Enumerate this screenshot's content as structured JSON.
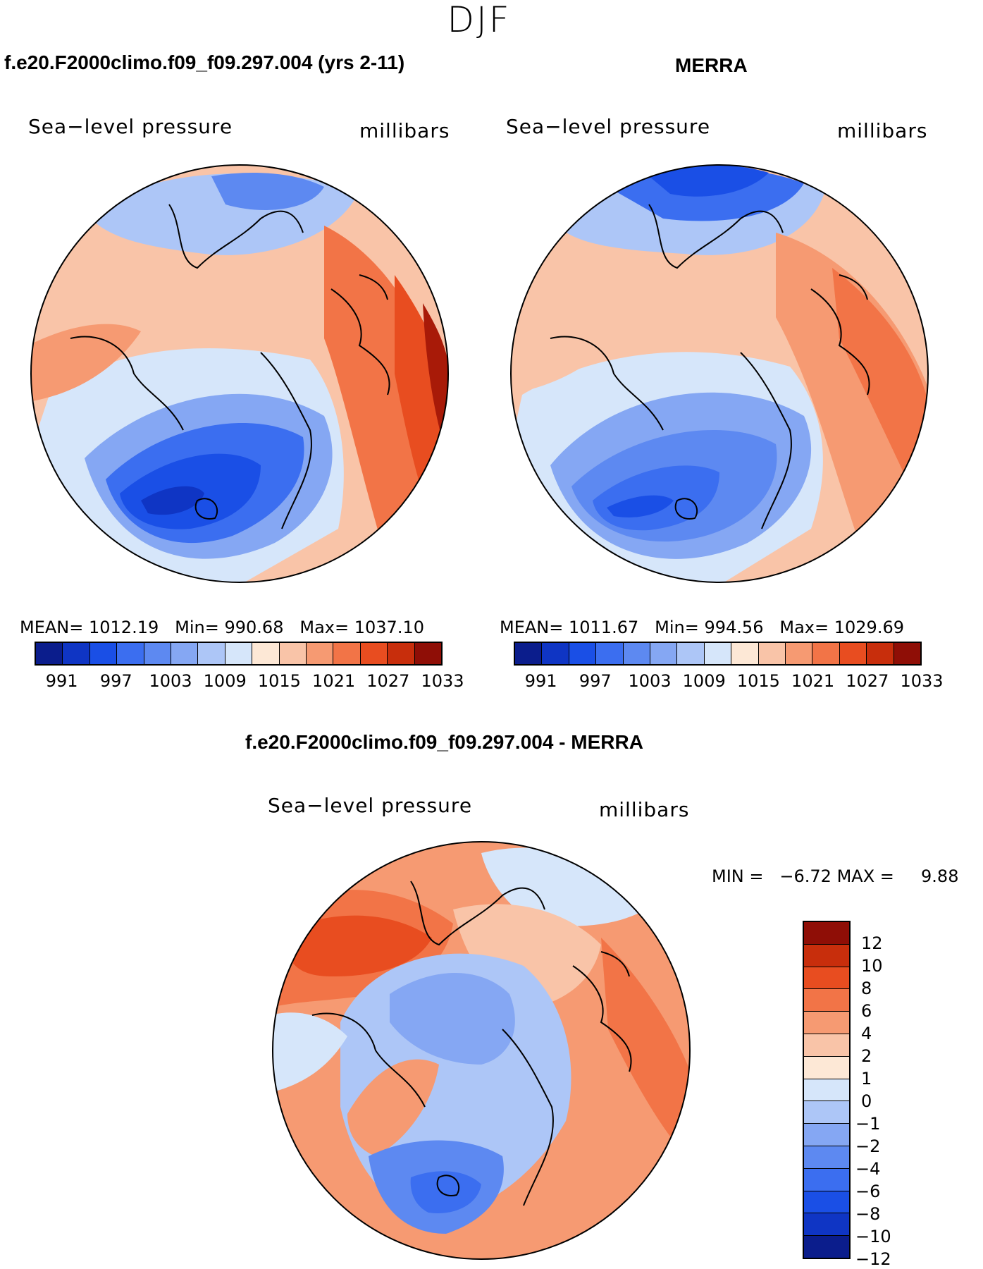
{
  "season": "DJF",
  "panels": [
    {
      "title": "f.e20.F2000climo.f09_f09.297.004 (yrs 2-11)",
      "variable": "Sea−level pressure",
      "units": "millibars",
      "mean_label": "MEAN=",
      "mean": "1012.19",
      "min_label": "Min=",
      "min": "990.68",
      "max_label": "Max=",
      "max": "1037.10"
    },
    {
      "title": "MERRA",
      "variable": "Sea−level pressure",
      "units": "millibars",
      "mean_label": "MEAN=",
      "mean": "1011.67",
      "min_label": "Min=",
      "min": "994.56",
      "max_label": "Max=",
      "max": "1029.69"
    }
  ],
  "diff_panel": {
    "title": "f.e20.F2000climo.f09_f09.297.004 - MERRA",
    "variable": "Sea−level pressure",
    "units": "millibars",
    "min_label": "MIN =",
    "min": "−6.72",
    "max_label": "MAX =",
    "max": "9.88"
  },
  "abs_colorbar": {
    "colors": [
      "#0b1d8c",
      "#0f35c4",
      "#1a4fe6",
      "#3b6ef0",
      "#5d89f1",
      "#85a7f3",
      "#adc6f7",
      "#d6e6fa",
      "#fde8d6",
      "#f9c4a8",
      "#f69a72",
      "#f27447",
      "#e84d20",
      "#c82e0c",
      "#8f0e06"
    ],
    "ticks": [
      "991",
      "997",
      "1003",
      "1009",
      "1015",
      "1021",
      "1027",
      "1033"
    ]
  },
  "diff_colorbar": {
    "colors": [
      "#8f0e06",
      "#c82e0c",
      "#e84d20",
      "#f27447",
      "#f69a72",
      "#f9c4a8",
      "#fde8d6",
      "#d6e6fa",
      "#adc6f7",
      "#85a7f3",
      "#5d89f1",
      "#3b6ef0",
      "#1a4fe6",
      "#0f35c4",
      "#0b1d8c"
    ],
    "ticks": [
      "12",
      "10",
      "8",
      "6",
      "4",
      "2",
      "1",
      "0",
      "−1",
      "−2",
      "−4",
      "−6",
      "−8",
      "−10",
      "−12"
    ]
  },
  "map_colors": {
    "deep_red": "#a81a08",
    "red": "#e84d20",
    "orange": "#f27447",
    "salmon": "#f69a72",
    "peach": "#f9c4a8",
    "cream": "#fde8d6",
    "pale_blue": "#d6e6fa",
    "light_blue": "#adc6f7",
    "blue": "#85a7f3",
    "mid_blue": "#5d89f1",
    "strong_blue": "#3b6ef0",
    "deep_blue": "#1a4fe6",
    "navy": "#0f35c4"
  }
}
